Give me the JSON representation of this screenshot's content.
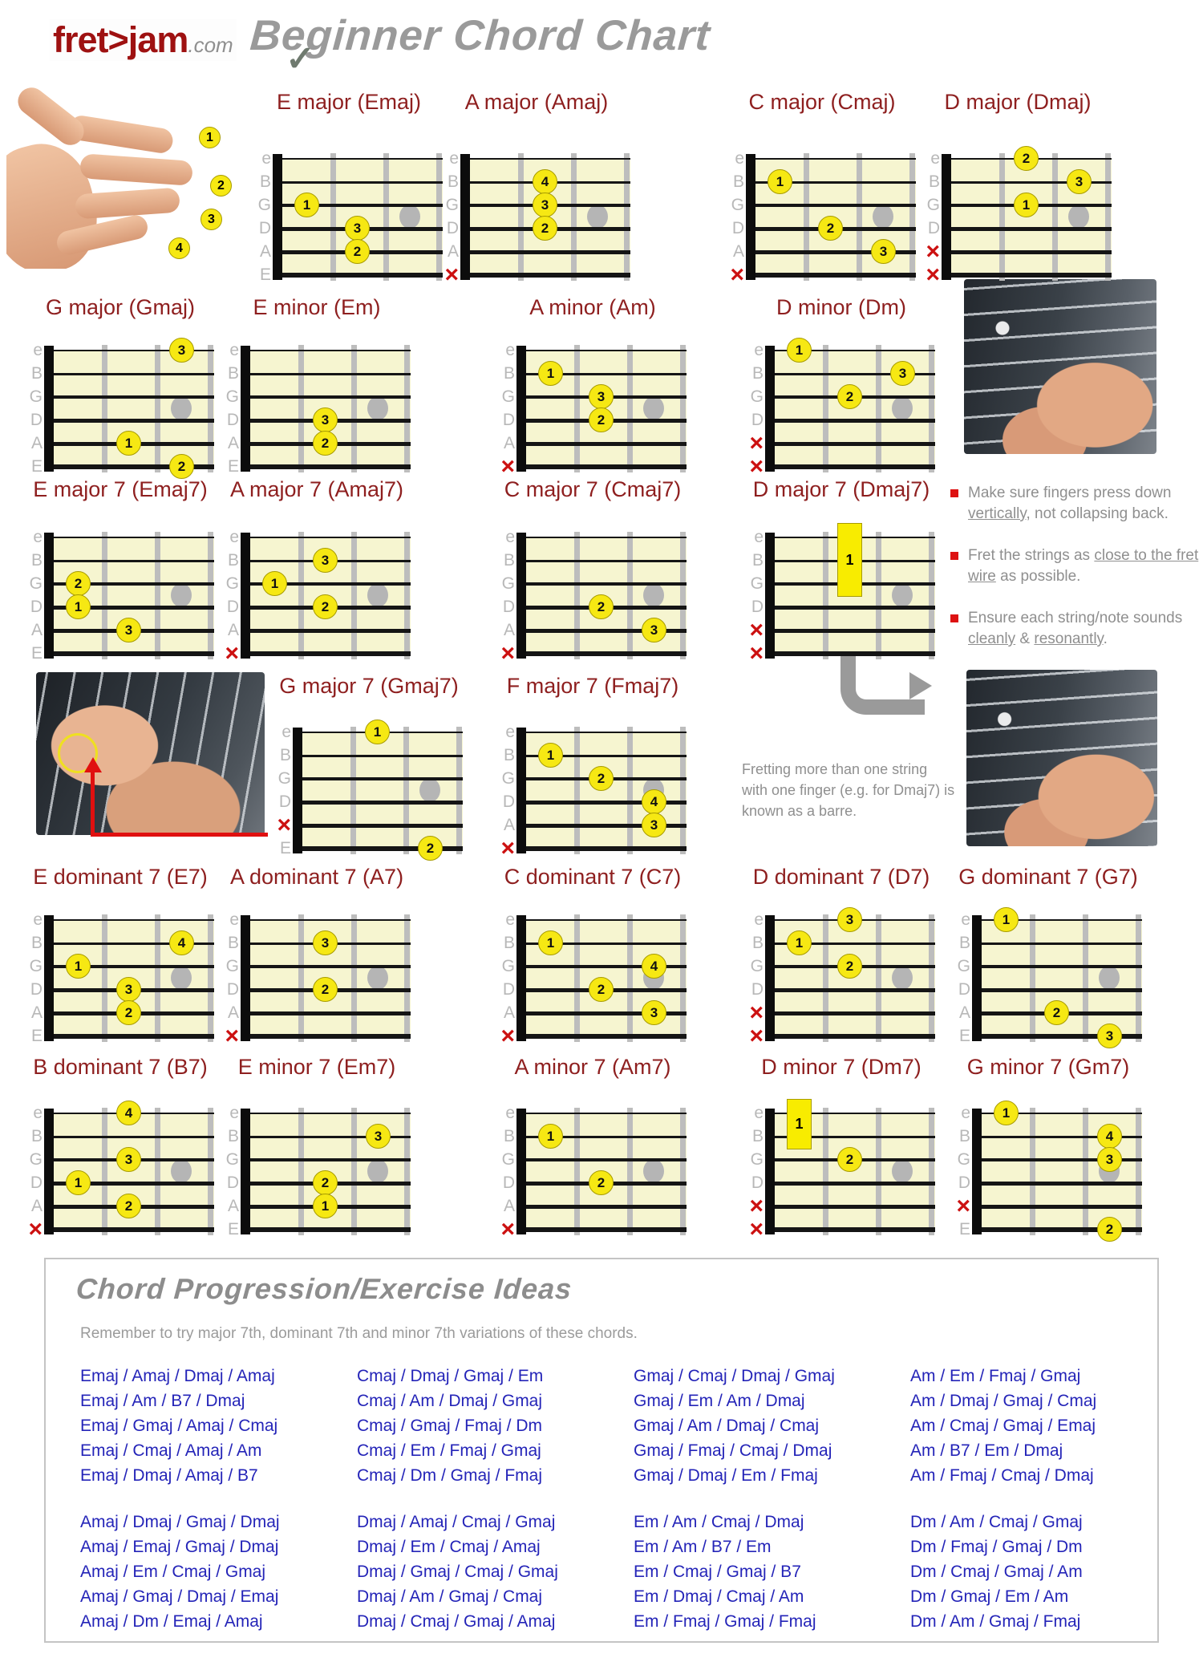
{
  "header": {
    "logo_main": "fret>jam",
    "logo_suffix": ".com",
    "title": "Beginner Chord Chart",
    "check_icon": "✓"
  },
  "strings": [
    "e",
    "B",
    "G",
    "D",
    "A",
    "E"
  ],
  "muted_symbol": "×",
  "hand_badges": [
    "1",
    "2",
    "3",
    "4"
  ],
  "colors": {
    "title_red": "#8e1f1f",
    "board_yellow": "#f6f5d0",
    "finger_yellow": "#f6e813",
    "muted_red": "#cc1111",
    "progression_blue": "#2424b8",
    "gray_text": "#8f8f8f"
  },
  "chords": [
    {
      "title": "E major (Emaj)",
      "row": 0,
      "slot": 0,
      "muted": [],
      "fingers": [
        {
          "s": 2,
          "f": 1,
          "n": "1"
        },
        {
          "s": 3,
          "f": 2,
          "n": "3"
        },
        {
          "s": 4,
          "f": 2,
          "n": "2"
        }
      ]
    },
    {
      "title": "A major (Amaj)",
      "row": 0,
      "slot": 1,
      "muted": [
        5
      ],
      "fingers": [
        {
          "s": 1,
          "f": 2,
          "n": "4"
        },
        {
          "s": 2,
          "f": 2,
          "n": "3"
        },
        {
          "s": 3,
          "f": 2,
          "n": "2"
        }
      ]
    },
    {
      "title": "C major (Cmaj)",
      "row": 0,
      "slot": 2,
      "muted": [
        5
      ],
      "fingers": [
        {
          "s": 1,
          "f": 1,
          "n": "1"
        },
        {
          "s": 3,
          "f": 2,
          "n": "2"
        },
        {
          "s": 4,
          "f": 3,
          "n": "3"
        }
      ]
    },
    {
      "title": "D major (Dmaj)",
      "row": 0,
      "slot": 3,
      "muted": [
        4,
        5
      ],
      "fingers": [
        {
          "s": 0,
          "f": 2,
          "n": "2"
        },
        {
          "s": 1,
          "f": 3,
          "n": "3"
        },
        {
          "s": 2,
          "f": 2,
          "n": "1"
        }
      ]
    },
    {
      "title": "G major (Gmaj)",
      "row": 1,
      "slot": 0,
      "muted": [],
      "fingers": [
        {
          "s": 0,
          "f": 3,
          "n": "3"
        },
        {
          "s": 4,
          "f": 2,
          "n": "1"
        },
        {
          "s": 5,
          "f": 3,
          "n": "2"
        }
      ]
    },
    {
      "title": "E minor (Em)",
      "row": 1,
      "slot": 1,
      "muted": [],
      "fingers": [
        {
          "s": 3,
          "f": 2,
          "n": "3"
        },
        {
          "s": 4,
          "f": 2,
          "n": "2"
        }
      ]
    },
    {
      "title": "A minor (Am)",
      "row": 1,
      "slot": 2,
      "muted": [
        5
      ],
      "fingers": [
        {
          "s": 1,
          "f": 1,
          "n": "1"
        },
        {
          "s": 2,
          "f": 2,
          "n": "3"
        },
        {
          "s": 3,
          "f": 2,
          "n": "2"
        }
      ]
    },
    {
      "title": "D minor (Dm)",
      "row": 1,
      "slot": 3,
      "muted": [
        4,
        5
      ],
      "fingers": [
        {
          "s": 0,
          "f": 1,
          "n": "1"
        },
        {
          "s": 1,
          "f": 3,
          "n": "3"
        },
        {
          "s": 2,
          "f": 2,
          "n": "2"
        }
      ]
    },
    {
      "title": "E major 7 (Emaj7)",
      "row": 2,
      "slot": 0,
      "muted": [],
      "fingers": [
        {
          "s": 2,
          "f": 1,
          "n": "2"
        },
        {
          "s": 3,
          "f": 1,
          "n": "1"
        },
        {
          "s": 4,
          "f": 2,
          "n": "3"
        }
      ]
    },
    {
      "title": "A major 7 (Amaj7)",
      "row": 2,
      "slot": 1,
      "muted": [
        5
      ],
      "fingers": [
        {
          "s": 1,
          "f": 2,
          "n": "3"
        },
        {
          "s": 2,
          "f": 1,
          "n": "1"
        },
        {
          "s": 3,
          "f": 2,
          "n": "2"
        }
      ]
    },
    {
      "title": "C major 7 (Cmaj7)",
      "row": 2,
      "slot": 2,
      "muted": [
        5
      ],
      "fingers": [
        {
          "s": 3,
          "f": 2,
          "n": "2"
        },
        {
          "s": 4,
          "f": 3,
          "n": "3"
        }
      ]
    },
    {
      "title": "D major 7 (Dmaj7)",
      "row": 2,
      "slot": 3,
      "muted": [
        4,
        5
      ],
      "fingers": [],
      "barre": {
        "f": 2,
        "from": 0,
        "to": 2,
        "n": "1"
      }
    },
    {
      "title": "G major 7 (Gmaj7)",
      "row": 3,
      "slot": 0,
      "muted": [
        4
      ],
      "fingers": [
        {
          "s": 0,
          "f": 2,
          "n": "1"
        },
        {
          "s": 5,
          "f": 3,
          "n": "2"
        }
      ]
    },
    {
      "title": "F major 7 (Fmaj7)",
      "row": 3,
      "slot": 1,
      "muted": [
        5
      ],
      "fingers": [
        {
          "s": 1,
          "f": 1,
          "n": "1"
        },
        {
          "s": 2,
          "f": 2,
          "n": "2"
        },
        {
          "s": 3,
          "f": 3,
          "n": "4"
        },
        {
          "s": 4,
          "f": 3,
          "n": "3"
        }
      ]
    },
    {
      "title": "E dominant 7 (E7)",
      "row": 4,
      "slot": 0,
      "muted": [],
      "fingers": [
        {
          "s": 1,
          "f": 3,
          "n": "4"
        },
        {
          "s": 2,
          "f": 1,
          "n": "1"
        },
        {
          "s": 3,
          "f": 2,
          "n": "3"
        },
        {
          "s": 4,
          "f": 2,
          "n": "2"
        }
      ]
    },
    {
      "title": "A dominant 7 (A7)",
      "row": 4,
      "slot": 1,
      "muted": [
        5
      ],
      "fingers": [
        {
          "s": 1,
          "f": 2,
          "n": "3"
        },
        {
          "s": 3,
          "f": 2,
          "n": "2"
        }
      ]
    },
    {
      "title": "C dominant 7 (C7)",
      "row": 4,
      "slot": 2,
      "muted": [
        5
      ],
      "fingers": [
        {
          "s": 1,
          "f": 1,
          "n": "1"
        },
        {
          "s": 2,
          "f": 3,
          "n": "4"
        },
        {
          "s": 3,
          "f": 2,
          "n": "2"
        },
        {
          "s": 4,
          "f": 3,
          "n": "3"
        }
      ]
    },
    {
      "title": "D dominant 7 (D7)",
      "row": 4,
      "slot": 3,
      "muted": [
        4,
        5
      ],
      "fingers": [
        {
          "s": 0,
          "f": 2,
          "n": "3"
        },
        {
          "s": 1,
          "f": 1,
          "n": "1"
        },
        {
          "s": 2,
          "f": 2,
          "n": "2"
        }
      ]
    },
    {
      "title": "G dominant 7 (G7)",
      "row": 4,
      "slot": 4,
      "muted": [],
      "fingers": [
        {
          "s": 0,
          "f": 1,
          "n": "1"
        },
        {
          "s": 4,
          "f": 2,
          "n": "2"
        },
        {
          "s": 5,
          "f": 3,
          "n": "3"
        }
      ]
    },
    {
      "title": "B dominant 7 (B7)",
      "row": 5,
      "slot": 0,
      "muted": [
        5
      ],
      "fingers": [
        {
          "s": 0,
          "f": 2,
          "n": "4"
        },
        {
          "s": 2,
          "f": 2,
          "n": "3"
        },
        {
          "s": 3,
          "f": 1,
          "n": "1"
        },
        {
          "s": 4,
          "f": 2,
          "n": "2"
        }
      ]
    },
    {
      "title": "E minor 7 (Em7)",
      "row": 5,
      "slot": 1,
      "muted": [],
      "fingers": [
        {
          "s": 1,
          "f": 3,
          "n": "3"
        },
        {
          "s": 3,
          "f": 2,
          "n": "2"
        },
        {
          "s": 4,
          "f": 2,
          "n": "1"
        }
      ]
    },
    {
      "title": "A minor 7 (Am7)",
      "row": 5,
      "slot": 2,
      "muted": [
        5
      ],
      "fingers": [
        {
          "s": 1,
          "f": 1,
          "n": "1"
        },
        {
          "s": 3,
          "f": 2,
          "n": "2"
        }
      ]
    },
    {
      "title": "D minor 7 (Dm7)",
      "row": 5,
      "slot": 3,
      "muted": [
        4,
        5
      ],
      "fingers": [
        {
          "s": 2,
          "f": 2,
          "n": "2"
        }
      ],
      "barre": {
        "f": 1,
        "from": 0,
        "to": 1,
        "n": "1"
      }
    },
    {
      "title": "G minor 7 (Gm7)",
      "row": 5,
      "slot": 4,
      "muted": [
        4
      ],
      "fingers": [
        {
          "s": 0,
          "f": 1,
          "n": "1"
        },
        {
          "s": 1,
          "f": 3,
          "n": "4"
        },
        {
          "s": 2,
          "f": 3,
          "n": "3"
        },
        {
          "s": 5,
          "f": 3,
          "n": "2"
        }
      ]
    }
  ],
  "tips": [
    {
      "segments": [
        {
          "t": "Make sure fingers press down "
        },
        {
          "t": "vertically",
          "u": true
        },
        {
          "t": ", not collapsing back."
        }
      ]
    },
    {
      "segments": [
        {
          "t": "Fret the strings as "
        },
        {
          "t": "close to the fret wire",
          "u": true
        },
        {
          "t": " as possible."
        }
      ]
    },
    {
      "segments": [
        {
          "t": "Ensure each string/note sounds "
        },
        {
          "t": "cleanly",
          "u": true
        },
        {
          "t": " & "
        },
        {
          "t": "resonantly",
          "u": true
        },
        {
          "t": "."
        }
      ]
    }
  ],
  "barre_note": "Fretting more than one string with one finger (e.g. for Dmaj7) is known as a barre.",
  "progressions": {
    "box_title": "Chord Progression/Exercise Ideas",
    "subtitle": "Remember to try major 7th, dominant 7th and minor 7th variations of these chords.",
    "columns": [
      {
        "blocks": [
          [
            "Emaj / Amaj / Dmaj / Amaj",
            "Emaj / Am / B7 / Dmaj",
            "Emaj / Gmaj / Amaj / Cmaj",
            "Emaj / Cmaj / Amaj / Am",
            "Emaj / Dmaj / Amaj / B7"
          ],
          [
            "Amaj / Dmaj / Gmaj / Dmaj",
            "Amaj / Emaj / Gmaj / Dmaj",
            "Amaj / Em / Cmaj / Gmaj",
            "Amaj / Gmaj / Dmaj / Emaj",
            "Amaj / Dm / Emaj / Amaj"
          ]
        ]
      },
      {
        "blocks": [
          [
            "Cmaj / Dmaj / Gmaj / Em",
            "Cmaj / Am / Dmaj / Gmaj",
            "Cmaj / Gmaj / Fmaj / Dm",
            "Cmaj / Em / Fmaj / Gmaj",
            "Cmaj / Dm / Gmaj / Fmaj"
          ],
          [
            "Dmaj / Amaj / Cmaj / Gmaj",
            "Dmaj / Em / Cmaj / Amaj",
            "Dmaj / Gmaj / Cmaj / Gmaj",
            "Dmaj / Am / Gmaj / Cmaj",
            "Dmaj / Cmaj / Gmaj / Amaj"
          ]
        ]
      },
      {
        "blocks": [
          [
            "Gmaj / Cmaj / Dmaj / Gmaj",
            "Gmaj / Em / Am / Dmaj",
            "Gmaj / Am / Dmaj / Cmaj",
            "Gmaj / Fmaj / Cmaj / Dmaj",
            "Gmaj / Dmaj / Em / Fmaj"
          ],
          [
            "Em / Am / Cmaj / Dmaj",
            "Em / Am / B7 / Em",
            "Em / Cmaj / Gmaj / B7",
            "Em / Dmaj / Cmaj / Am",
            "Em / Fmaj / Gmaj / Fmaj"
          ]
        ]
      },
      {
        "blocks": [
          [
            "Am / Em / Fmaj / Gmaj",
            "Am / Dmaj / Gmaj / Cmaj",
            "Am / Cmaj / Gmaj / Emaj",
            "Am / B7 / Em / Dmaj",
            "Am / Fmaj / Cmaj / Dmaj"
          ],
          [
            "Dm / Am / Cmaj / Gmaj",
            "Dm / Fmaj / Gmaj / Dm",
            "Dm / Cmaj / Gmaj / Am",
            "Dm / Gmaj / Em / Am",
            "Dm / Am / Gmaj / Fmaj"
          ]
        ]
      }
    ]
  }
}
